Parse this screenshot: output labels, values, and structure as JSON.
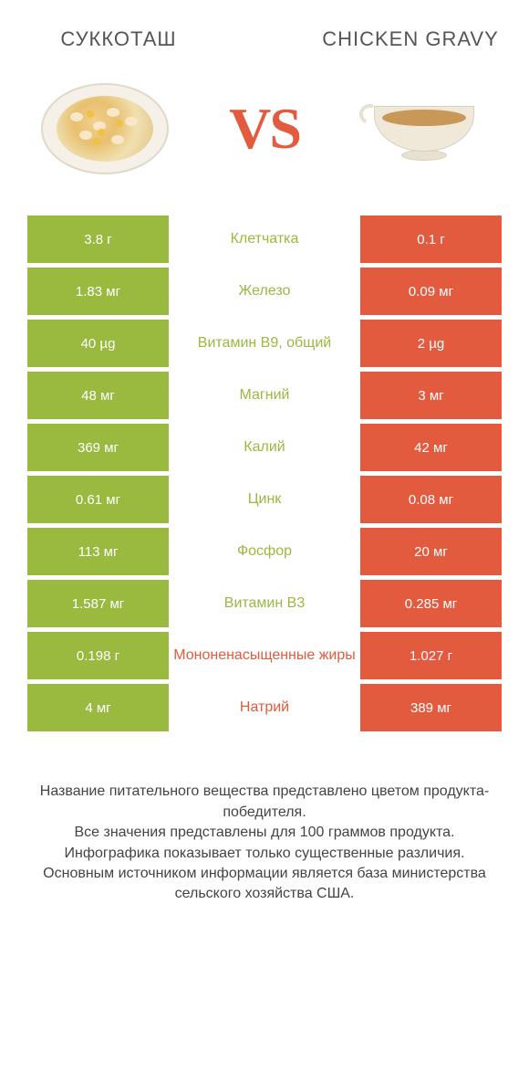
{
  "colors": {
    "green": "#99b93f",
    "orange": "#e25b3f",
    "white": "#ffffff"
  },
  "header": {
    "left_title": "СУККОТАШ",
    "right_title": "CHICKEN GRAVY",
    "vs": "VS"
  },
  "rows": [
    {
      "left": "3.8 г",
      "mid": "Клетчатка",
      "right": "0.1 г",
      "winner": "left"
    },
    {
      "left": "1.83 мг",
      "mid": "Железо",
      "right": "0.09 мг",
      "winner": "left"
    },
    {
      "left": "40 µg",
      "mid": "Витамин B9, общий",
      "right": "2 µg",
      "winner": "left"
    },
    {
      "left": "48 мг",
      "mid": "Магний",
      "right": "3 мг",
      "winner": "left"
    },
    {
      "left": "369 мг",
      "mid": "Калий",
      "right": "42 мг",
      "winner": "left"
    },
    {
      "left": "0.61 мг",
      "mid": "Цинк",
      "right": "0.08 мг",
      "winner": "left"
    },
    {
      "left": "113 мг",
      "mid": "Фосфор",
      "right": "20 мг",
      "winner": "left"
    },
    {
      "left": "1.587 мг",
      "mid": "Витамин B3",
      "right": "0.285 мг",
      "winner": "left"
    },
    {
      "left": "0.198 г",
      "mid": "Мононенасыщенные жиры",
      "right": "1.027 г",
      "winner": "right"
    },
    {
      "left": "4 мг",
      "mid": "Натрий",
      "right": "389 мг",
      "winner": "right"
    }
  ],
  "footer": {
    "l1": "Название питательного вещества представлено цветом продукта-победителя.",
    "l2": "Все значения представлены для 100 граммов продукта.",
    "l3": "Инфографика показывает только существенные различия.",
    "l4": "Основным источником информации является база министерства сельского хозяйства США."
  }
}
